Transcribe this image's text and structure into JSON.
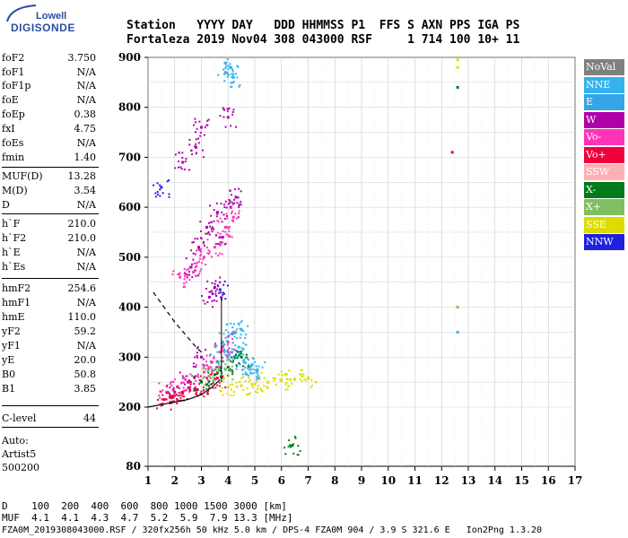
{
  "logo": {
    "line1": "Lowell",
    "line2": "DIGISONDE"
  },
  "header": {
    "row1": "Station   YYYY DAY   DDD HHMMSS P1  FFS S AXN PPS IGA PS",
    "row2": "Fortaleza 2019 Nov04 308 043000 RSF     1 714 100 10+ 11"
  },
  "params": [
    {
      "name": "foF2",
      "value": "3.750"
    },
    {
      "name": "foF1",
      "value": "N/A"
    },
    {
      "name": "foF1p",
      "value": "N/A"
    },
    {
      "name": "foE",
      "value": "N/A"
    },
    {
      "name": "foEp",
      "value": "0.38"
    },
    {
      "name": "fxI",
      "value": "4.75"
    },
    {
      "name": "foEs",
      "value": "N/A"
    },
    {
      "name": "fmin",
      "value": "1.40"
    },
    {
      "name": "MUF(D)",
      "value": "13.28"
    },
    {
      "name": "M(D)",
      "value": "3.54"
    },
    {
      "name": "D",
      "value": "N/A"
    },
    {
      "name": "h`F",
      "value": "210.0"
    },
    {
      "name": "h`F2",
      "value": "210.0"
    },
    {
      "name": "h`E",
      "value": "N/A"
    },
    {
      "name": "h`Es",
      "value": "N/A"
    },
    {
      "name": "hmF2",
      "value": "254.6"
    },
    {
      "name": "hmF1",
      "value": "N/A"
    },
    {
      "name": "hmE",
      "value": "110.0"
    },
    {
      "name": "yF2",
      "value": "59.2"
    },
    {
      "name": "yF1",
      "value": "N/A"
    },
    {
      "name": "yE",
      "value": "20.0"
    },
    {
      "name": "B0",
      "value": "50.8"
    },
    {
      "name": "B1",
      "value": "3.85"
    },
    {
      "name": "C-level",
      "value": "44"
    }
  ],
  "auto": {
    "line1": "Auto:",
    "line2": "Artist5",
    "line3": "500200"
  },
  "legend": [
    {
      "label": "NoVal",
      "color": "#808080"
    },
    {
      "label": "NNE",
      "color": "#33b2ee"
    },
    {
      "label": "E",
      "color": "#33a6e6"
    },
    {
      "label": "W",
      "color": "#b000a8"
    },
    {
      "label": "Vo-",
      "color": "#ff33b8"
    },
    {
      "label": "Vo+",
      "color": "#f0003c"
    },
    {
      "label": "SSW",
      "color": "#ffb0b4"
    },
    {
      "label": "X-",
      "color": "#007a1a"
    },
    {
      "label": "X+",
      "color": "#7fbf60"
    },
    {
      "label": "SSE",
      "color": "#dcdc00"
    },
    {
      "label": "NNW",
      "color": "#2020e0"
    }
  ],
  "footer": {
    "d_line": "D    100  200  400  600  800 1000 1500 3000 [km]",
    "muf_line": "MUF  4.1  4.1  4.3  4.7  5.2  5.9  7.9 13.3 [MHz]",
    "file_line": "FZA0M_2019308043000.RSF / 320fx256h 50 kHz 5.0 km / DPS-4 FZA0M 904 / 3.9 S 321.6 E   Ion2Png 1.3.20"
  },
  "chart_data": {
    "type": "scatter",
    "x_ticks": [
      1,
      2,
      3,
      4,
      5,
      6,
      7,
      8,
      9,
      10,
      11,
      12,
      13,
      14,
      15,
      16,
      17
    ],
    "y_ticks": [
      80,
      200,
      300,
      400,
      500,
      600,
      700,
      800,
      900
    ],
    "xlim": [
      1,
      17
    ],
    "ylim": [
      80,
      900
    ],
    "xlabel": "",
    "ylabel": "",
    "grid": true,
    "legend_position": "right",
    "series": [
      {
        "name": "NNE",
        "color": "#33b2ee",
        "points": [
          [
            3.6,
            290
          ],
          [
            4.0,
            310
          ],
          [
            4.3,
            300
          ],
          [
            4.6,
            290
          ],
          [
            4.9,
            285
          ],
          [
            4.2,
            350
          ],
          [
            3.9,
            870
          ],
          [
            4.1,
            880
          ],
          [
            4.2,
            860
          ],
          [
            4.4,
            320
          ],
          [
            4.8,
            280
          ],
          [
            5.1,
            275
          ],
          [
            3.8,
            330
          ],
          [
            4.5,
            355
          ],
          [
            12.6,
            350
          ]
        ]
      },
      {
        "name": "W",
        "color": "#b000a8",
        "points": [
          [
            2.0,
            230
          ],
          [
            2.5,
            250
          ],
          [
            3.0,
            300
          ],
          [
            3.3,
            420
          ],
          [
            3.5,
            440
          ],
          [
            3.8,
            540
          ],
          [
            4.1,
            600
          ],
          [
            4.3,
            620
          ],
          [
            2.6,
            480
          ],
          [
            2.9,
            520
          ],
          [
            3.2,
            560
          ],
          [
            3.6,
            590
          ],
          [
            2.3,
            690
          ],
          [
            2.8,
            720
          ],
          [
            3.0,
            760
          ],
          [
            4.0,
            780
          ]
        ]
      },
      {
        "name": "Vo-",
        "color": "#ff33b8",
        "points": [
          [
            1.7,
            230
          ],
          [
            2.1,
            240
          ],
          [
            2.6,
            250
          ],
          [
            3.1,
            270
          ],
          [
            3.4,
            290
          ],
          [
            3.7,
            310
          ],
          [
            4.0,
            330
          ],
          [
            2.2,
            460
          ],
          [
            2.7,
            470
          ],
          [
            3.1,
            500
          ],
          [
            3.5,
            520
          ],
          [
            3.9,
            560
          ],
          [
            4.2,
            580
          ]
        ]
      },
      {
        "name": "Vo+",
        "color": "#f0003c",
        "points": [
          [
            1.6,
            215
          ],
          [
            1.9,
            222
          ],
          [
            2.3,
            228
          ],
          [
            2.8,
            235
          ],
          [
            3.2,
            245
          ],
          [
            3.6,
            258
          ],
          [
            12.4,
            710
          ]
        ]
      },
      {
        "name": "X-",
        "color": "#007a1a",
        "points": [
          [
            3.0,
            250
          ],
          [
            3.5,
            265
          ],
          [
            4.0,
            280
          ],
          [
            4.5,
            300
          ],
          [
            6.4,
            122
          ],
          [
            12.6,
            840
          ]
        ]
      },
      {
        "name": "X+",
        "color": "#7fbf60",
        "points": [
          [
            3.3,
            262
          ],
          [
            3.9,
            275
          ],
          [
            12.6,
            400
          ]
        ]
      },
      {
        "name": "SSE",
        "color": "#dcdc00",
        "points": [
          [
            4.0,
            240
          ],
          [
            4.5,
            243
          ],
          [
            5.0,
            246
          ],
          [
            5.5,
            250
          ],
          [
            6.0,
            253
          ],
          [
            6.5,
            256
          ],
          [
            7.0,
            258
          ],
          [
            12.6,
            880
          ],
          [
            12.6,
            895
          ]
        ]
      },
      {
        "name": "NNW",
        "color": "#2020e0",
        "points": [
          [
            1.5,
            640
          ],
          [
            3.7,
            435
          ]
        ]
      }
    ],
    "profile_curve": [
      [
        1.0,
        200
      ],
      [
        1.5,
        205
      ],
      [
        2.0,
        210
      ],
      [
        2.5,
        215
      ],
      [
        3.0,
        225
      ],
      [
        3.4,
        240
      ],
      [
        3.7,
        255
      ]
    ],
    "muf_curve": [
      [
        1.2,
        430
      ],
      [
        1.6,
        400
      ],
      [
        2.0,
        370
      ],
      [
        2.4,
        345
      ],
      [
        2.8,
        320
      ],
      [
        3.0,
        310
      ]
    ]
  }
}
